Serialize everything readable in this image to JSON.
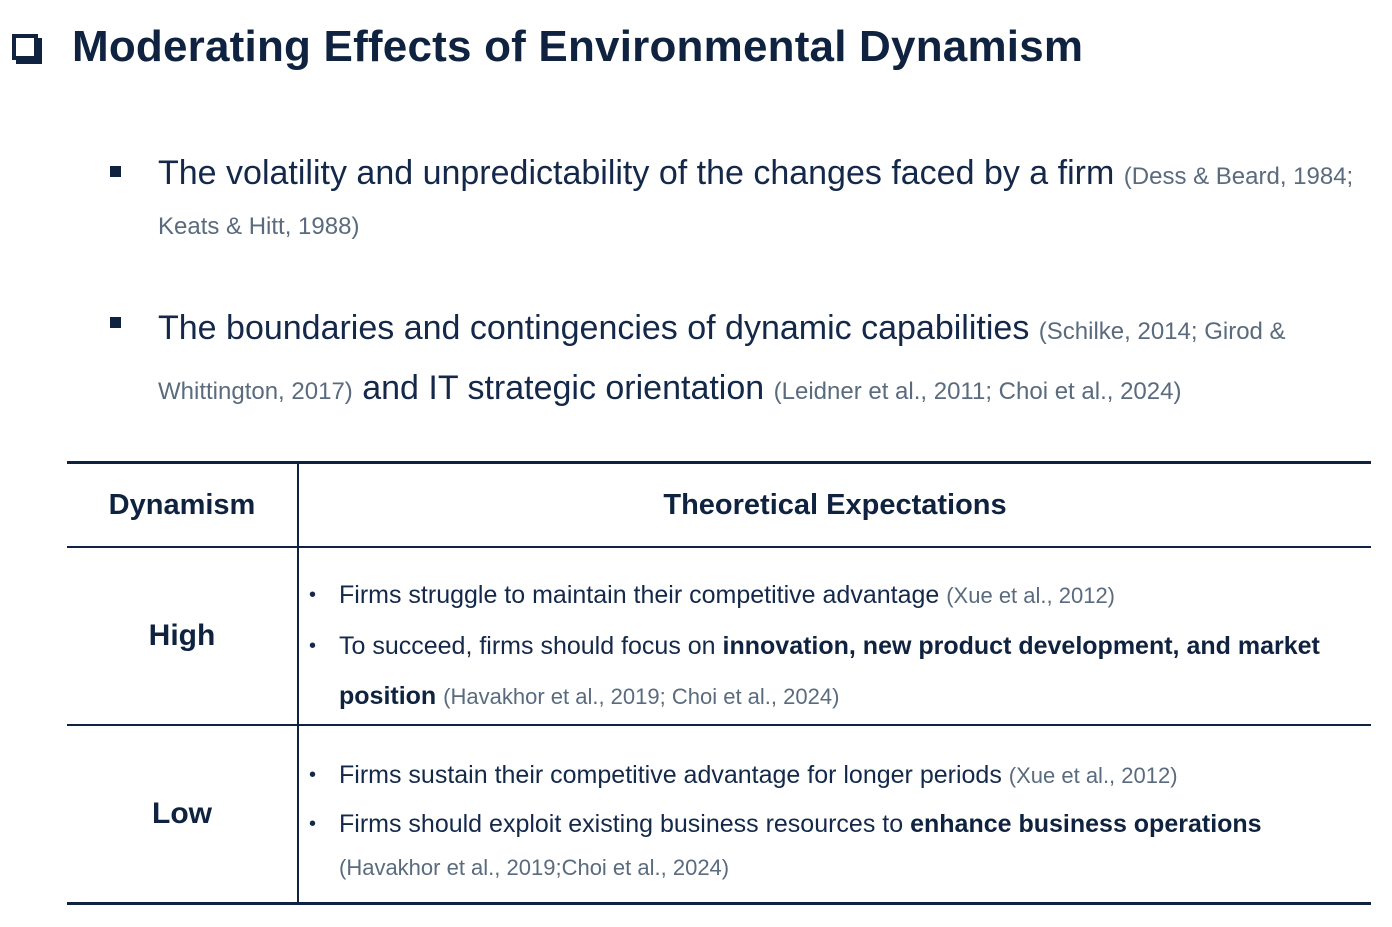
{
  "title": "Moderating Effects of Environmental Dynamism",
  "bullets": [
    {
      "text": "The volatility and unpredictability of the changes faced by a firm",
      "cite": "(Dess & Beard, 1984; Keats & Hitt, 1988)"
    },
    {
      "text_a": "The boundaries and contingencies of dynamic capabilities",
      "cite_a": "(Schilke, 2014; Girod & Whittington, 2017)",
      "text_b": "and IT strategic orientation",
      "cite_b": "(Leidner et al., 2011; Choi et al., 2024)"
    }
  ],
  "table": {
    "headers": {
      "dynamism": "Dynamism",
      "expectations": "Theoretical Expectations"
    },
    "rows": [
      {
        "level": "High",
        "items": [
          {
            "text": "Firms struggle to maintain their competitive advantage",
            "cite": "(Xue et al., 2012)"
          },
          {
            "text": "To succeed, firms should focus on",
            "bold": "innovation, new product development, and market position",
            "cite": "(Havakhor et al., 2019; Choi et al., 2024)"
          }
        ]
      },
      {
        "level": "Low",
        "items": [
          {
            "text": "Firms sustain their competitive advantage for longer periods",
            "cite": "(Xue et al., 2012)"
          },
          {
            "text": "Firms should exploit existing business resources to",
            "bold": "enhance business operations",
            "cite": "(Havakhor et al., 2019;Choi et al., 2024)"
          }
        ]
      }
    ]
  }
}
